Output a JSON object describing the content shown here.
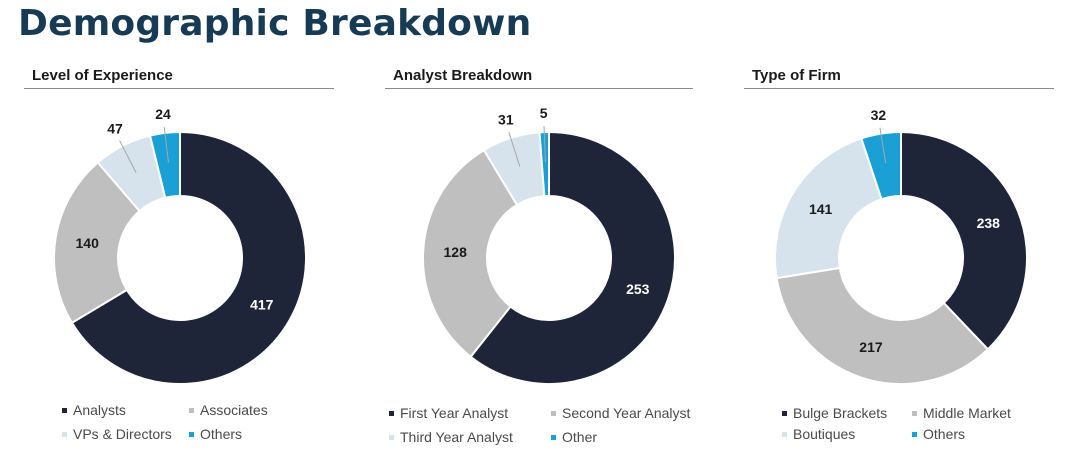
{
  "header": {
    "title": "Demographic Breakdown"
  },
  "colors": {
    "title": "#173a55",
    "navy": "#1e2538",
    "gray": "#bfbfbf",
    "light": "#d6e2ec",
    "cyan": "#1aa0d4"
  },
  "chart_data": [
    {
      "type": "pie",
      "title": "Level of Experience",
      "categories": [
        "Analysts",
        "Associates",
        "VPs & Directors",
        "Others"
      ],
      "values": [
        417,
        140,
        47,
        24
      ],
      "colors": [
        "#1e2538",
        "#bfbfbf",
        "#d6e2ec",
        "#1aa0d4"
      ],
      "legend": "bottom"
    },
    {
      "type": "pie",
      "title": "Analyst Breakdown",
      "categories": [
        "First Year Analyst",
        "Second Year Analyst",
        "Third Year Analyst",
        "Other"
      ],
      "values": [
        253,
        128,
        31,
        5
      ],
      "colors": [
        "#1e2538",
        "#bfbfbf",
        "#d6e2ec",
        "#1aa0d4"
      ],
      "legend": "bottom"
    },
    {
      "type": "pie",
      "title": "Type of Firm",
      "categories": [
        "Bulge Brackets",
        "Middle Market",
        "Boutiques",
        "Others"
      ],
      "values": [
        238,
        217,
        141,
        32
      ],
      "colors": [
        "#1e2538",
        "#bfbfbf",
        "#d6e2ec",
        "#1aa0d4"
      ],
      "legend": "bottom"
    }
  ]
}
